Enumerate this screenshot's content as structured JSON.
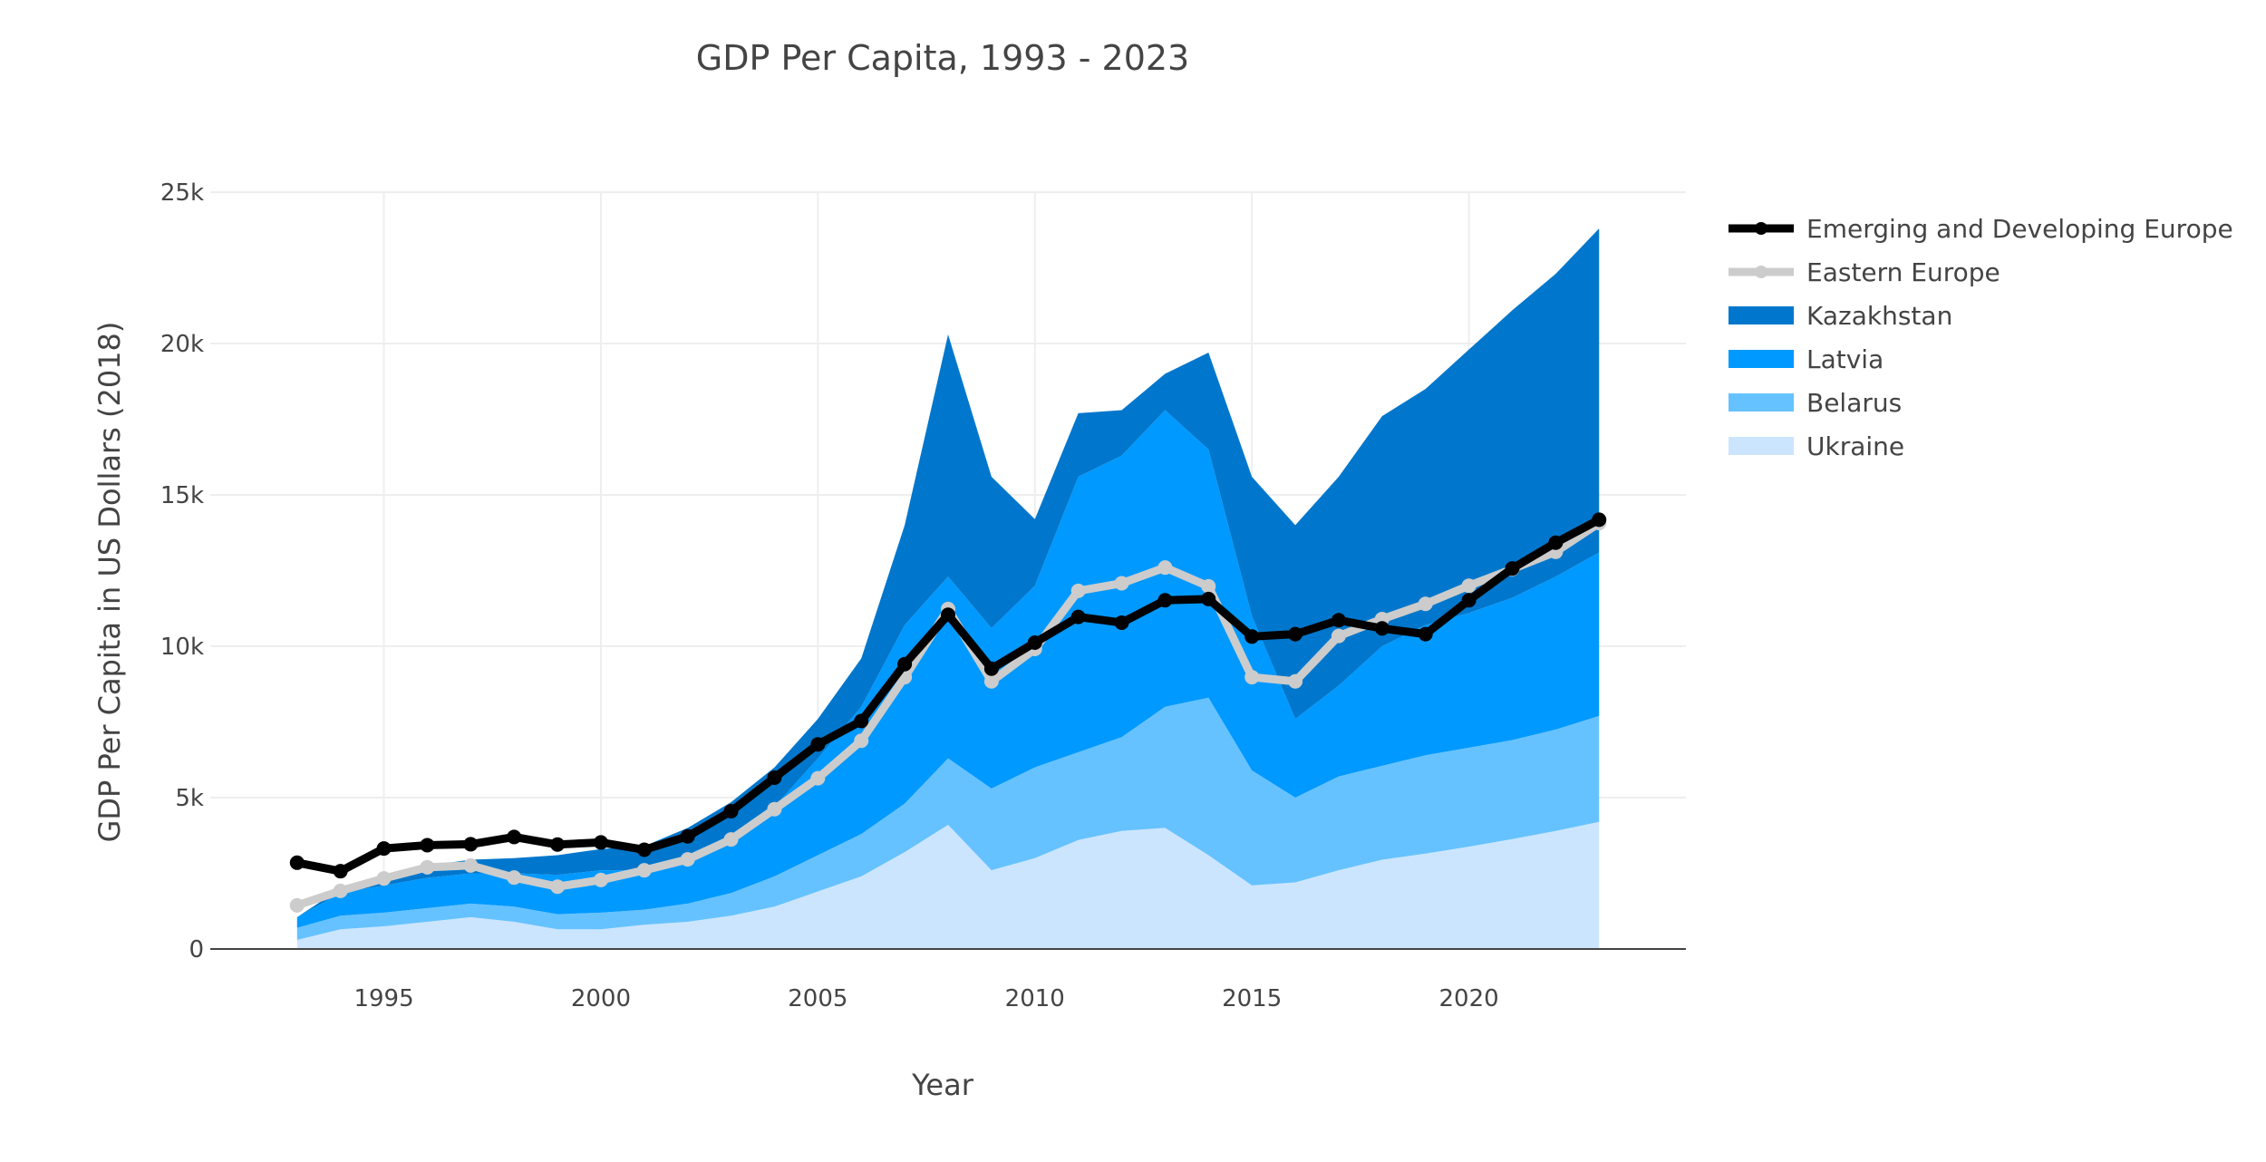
{
  "chart_data": {
    "type": "area",
    "title": "GDP Per Capita, 1993 - 2023",
    "xlabel": "Year",
    "ylabel": "GDP Per Capita in US Dollars (2018)",
    "xlim": [
      1991,
      2025
    ],
    "ylim": [
      0,
      25000
    ],
    "x_ticks": [
      1995,
      2000,
      2005,
      2010,
      2015,
      2020
    ],
    "x_tick_labels": [
      "1995",
      "2000",
      "2005",
      "2010",
      "2015",
      "2020"
    ],
    "y_ticks": [
      0,
      5000,
      10000,
      15000,
      20000,
      25000
    ],
    "y_tick_labels": [
      "0",
      "5k",
      "10k",
      "15k",
      "20k",
      "25k"
    ],
    "grid": true,
    "legend_position": "top-right",
    "stacked": true,
    "x": [
      1993,
      1994,
      1995,
      1996,
      1997,
      1998,
      1999,
      2000,
      2001,
      2002,
      2003,
      2004,
      2005,
      2006,
      2007,
      2008,
      2009,
      2010,
      2011,
      2012,
      2013,
      2014,
      2015,
      2016,
      2017,
      2018,
      2019,
      2020,
      2021,
      2022,
      2023
    ],
    "series": [
      {
        "name": "Ukraine",
        "kind": "stacked-area",
        "color": "#cce5ff",
        "values": [
          300,
          650,
          750,
          900,
          1050,
          900,
          650,
          650,
          800,
          900,
          1100,
          1400,
          1900,
          2400,
          3200,
          4100,
          2600,
          3000,
          3600,
          3900,
          4000,
          3100,
          2100,
          2200,
          2600,
          2950,
          3150,
          3380,
          3630,
          3900,
          4200
        ]
      },
      {
        "name": "Belarus",
        "kind": "stacked-area",
        "color": "#66c2ff",
        "values": [
          400,
          450,
          450,
          450,
          450,
          500,
          500,
          550,
          500,
          600,
          750,
          1000,
          1200,
          1400,
          1600,
          2200,
          2700,
          3000,
          2900,
          3100,
          4000,
          5200,
          3800,
          2800,
          3100,
          3100,
          3250,
          3270,
          3270,
          3350,
          3500
        ]
      },
      {
        "name": "Latvia",
        "kind": "stacked-area",
        "color": "#0099ff",
        "values": [
          350,
          750,
          900,
          1000,
          1000,
          1100,
          1300,
          1400,
          1300,
          1600,
          1900,
          2300,
          3200,
          4200,
          5900,
          6000,
          5300,
          6000,
          9100,
          9300,
          9800,
          8200,
          5100,
          2600,
          3000,
          3950,
          4300,
          4450,
          4700,
          5050,
          5400
        ]
      },
      {
        "name": "Kazakhstan",
        "kind": "stacked-area",
        "color": "#0077cc",
        "values": [
          0,
          150,
          350,
          400,
          450,
          500,
          650,
          700,
          800,
          900,
          1100,
          1300,
          1300,
          1600,
          3300,
          8000,
          5000,
          2200,
          2100,
          1500,
          1200,
          3200,
          4600,
          6400,
          6900,
          7600,
          7800,
          8700,
          9500,
          10000,
          10700
        ]
      },
      {
        "name": "Emerging and Developing Europe",
        "kind": "line",
        "color": "#000000",
        "values": [
          2850,
          2570,
          3320,
          3430,
          3460,
          3700,
          3450,
          3520,
          3280,
          3720,
          4550,
          5660,
          6760,
          7530,
          9410,
          11040,
          9260,
          10120,
          10970,
          10780,
          11520,
          11560,
          10320,
          10400,
          10860,
          10590,
          10400,
          11520,
          12570,
          13420,
          14180
        ]
      },
      {
        "name": "Eastern Europe",
        "kind": "line",
        "color": "#cccccc",
        "values": [
          1440,
          1920,
          2330,
          2700,
          2760,
          2360,
          2060,
          2280,
          2600,
          2960,
          3620,
          4620,
          5640,
          6880,
          8980,
          11230,
          8840,
          9910,
          11830,
          12080,
          12600,
          11980,
          8980,
          8840,
          10340,
          10900,
          11400,
          12000,
          12550,
          13120,
          14070
        ]
      }
    ]
  }
}
